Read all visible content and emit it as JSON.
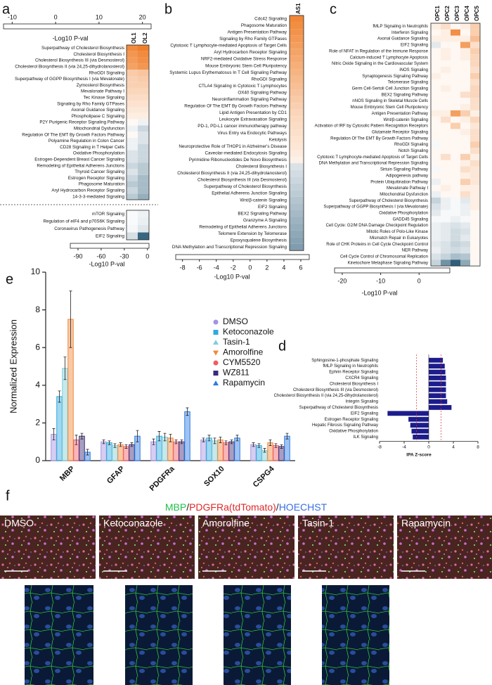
{
  "chart_data": [
    {
      "type": "heatmap",
      "panel": "a",
      "columns": [
        "OL1",
        "OL2"
      ],
      "blocks": [
        {
          "rows": [
            "Superpathway of Cholesterol Biosynthesis",
            "Cholesterol Biosynthesis I",
            "Cholesterol Biosynthesis III (via Desmosterol)",
            "Cholesterol Biosynthesis II (via 24,25-dihydrolanosterol)",
            "RhoGDI Signaling",
            "Superpathway of GGPP Biosynthesis I (via Mevalonate)",
            "Zymosterol Biosynthesis",
            "Mevalonate Pathway I",
            "Tec Kinase Signaling",
            "Signaling by Rho Family GTPases",
            "Axonal Guidance Signaling",
            "Phospholipase C Signaling",
            "P2Y Purigenic Receptor Signaling Pathway",
            "Mitochondrial Dysfunction",
            "Regulation Of The EMT By Growth Factors Pathway",
            "Polyamine Regulation in Colon Cancer",
            "CD28 Signaling in T Helper Cells",
            "Oxidative Phosphorylation",
            "Estrogen-Dependent Breast Cancer Signaling",
            "Remodeling of Epithelial Adherens Junctions",
            "Thyroid Cancer Signaling",
            "Estrogen Receptor Signaling",
            "Phagosome Maturation",
            "Aryl Hydrocarbon Receptor Signaling",
            "14-3-3-mediated Signaling"
          ],
          "values": [
            [
              20,
              22
            ],
            [
              18,
              20
            ],
            [
              17,
              19
            ],
            [
              16,
              18
            ],
            [
              9,
              10
            ],
            [
              8,
              9
            ],
            [
              8,
              8
            ],
            [
              7,
              7
            ],
            [
              6,
              6
            ],
            [
              5,
              5
            ],
            [
              4,
              4
            ],
            [
              3,
              3
            ],
            [
              1,
              -1
            ],
            [
              -1,
              -3
            ],
            [
              1,
              -2
            ],
            [
              -1,
              -2
            ],
            [
              -1,
              -3
            ],
            [
              -2,
              -3
            ],
            [
              -2,
              -3
            ],
            [
              -3,
              -4
            ],
            [
              -2,
              -4
            ],
            [
              -3,
              -5
            ],
            [
              -4,
              -5
            ],
            [
              -3,
              -5
            ],
            [
              -4,
              -6
            ]
          ],
          "colorbar_lim": [
            -12,
            22
          ],
          "colorbar_ticks": [
            -10,
            0,
            10,
            20
          ],
          "colorbar_label": "-Log10  P-val"
        },
        {
          "rows": [
            "mTOR Signaling",
            "Regulation of eIF4 and p70S6K Signaling",
            "Coronavirus Pathogenesis Pathway",
            "EIF2 Signaling"
          ],
          "values": [
            [
              -3,
              -8
            ],
            [
              -3,
              -10
            ],
            [
              -5,
              -15
            ],
            [
              -20,
              -95
            ]
          ],
          "colorbar_lim": [
            -100,
            2
          ],
          "colorbar_ticks": [
            -90,
            -60,
            -30,
            0
          ],
          "colorbar_label": "-Log10  P-val"
        }
      ],
      "positive_color": "#f07f2a",
      "negative_color": "#2f5f7a"
    },
    {
      "type": "heatmap",
      "panel": "b",
      "columns": [
        "AS1"
      ],
      "blocks": [
        {
          "rows": [
            "Cdc42 Signaling",
            "Phagosome Maturation",
            "Antigen Presentation Pathway",
            "Signaling by Rho Family GTPases",
            "Cytotoxic T Lymphocyte-mediated Apoptosis of Target Cells",
            "Aryl Hydrocarbon Receptor Signaling",
            "NRF2-mediated Oxidative Stress Response",
            "Mouse Embryonic Stem Cell Pluripotency",
            "Systemic Lupus Erythematosus In T Cell Signaling Pathway",
            "RhoGDI Signaling",
            "CTLA4 Signaling in Cytotoxic T Lymphocytes",
            "OX40 Signaling Pathway",
            "Neuroinflammation Signaling Pathway",
            "Regulation Of The EMT By Growth Factors Pathway",
            "Lipid Antigen Presentation by CD1",
            "Leukocyte Extravasation Signaling",
            "PD-1, PD-L1 cancer immunotherapy pathway",
            "Virus Entry via Endocytic Pathways",
            "Ketolysis",
            "Neuroprotective Role of THOP1 in Alzheimer's Disease",
            "Caveolar-mediated Endocytosis Signaling",
            "Pyrimidine Ribonucleotides De Novo Biosynthesis",
            "Cholesterol Biosynthesis I",
            "Cholesterol Biosynthesis II (via 24,25-dihydrolanosterol)",
            "Cholesterol Biosynthesis III (via Desmosterol)",
            "Superpathway of Cholesterol Biosynthesis",
            "Epithelial Adherens Junction Signaling",
            "Wnt/β-catenin Signaling",
            "EIF2 Signaling",
            "BEX2 Signaling Pathway",
            "Granzyme A Signaling",
            "Remodeling of Epithelial Adherens Junctions",
            "Telomere Extension by Telomerase",
            "Epoxysqualene Biosynthesis",
            "DNA Methylation and Transcriptional Repression Signaling"
          ],
          "values": [
            [
              6.5
            ],
            [
              6.2
            ],
            [
              5.9
            ],
            [
              5.6
            ],
            [
              5.3
            ],
            [
              5
            ],
            [
              4.7
            ],
            [
              4.4
            ],
            [
              4.1
            ],
            [
              3.8
            ],
            [
              3.5
            ],
            [
              3.2
            ],
            [
              2.9
            ],
            [
              2.6
            ],
            [
              2.3
            ],
            [
              2.1
            ],
            [
              1.9
            ],
            [
              1.7
            ],
            [
              1.5
            ],
            [
              1.3
            ],
            [
              1.1
            ],
            [
              0.8
            ],
            [
              -2
            ],
            [
              -2.4
            ],
            [
              -2.8
            ],
            [
              -3.2
            ],
            [
              -3.6
            ],
            [
              -4
            ],
            [
              -4.4
            ],
            [
              -4.8
            ],
            [
              -5.2
            ],
            [
              -5.6
            ],
            [
              -6
            ],
            [
              -6.4
            ],
            [
              -6.8
            ]
          ],
          "colorbar_lim": [
            -8.8,
            7
          ],
          "colorbar_ticks": [
            -8,
            -6,
            -4,
            -2,
            0,
            2,
            4,
            6
          ],
          "colorbar_label": "-Log10  P-val"
        }
      ],
      "positive_color": "#f07f2a",
      "negative_color": "#5a7f96"
    },
    {
      "type": "heatmap",
      "panel": "c",
      "columns": [
        "OPC1",
        "OPC2",
        "OPC3",
        "OPC4",
        "OPC5"
      ],
      "blocks": [
        {
          "rows": [
            "fMLP Signaling in Neutrophils",
            "Interferon Signaling",
            "Axonal Guidance Signaling",
            "EIF2 Signaling",
            "Role of NFAT in Regulation of the Immune Response",
            "Calcium-induced T Lymphocyte Apoptosis",
            "Nitric Oxide Signaling in the Cardiovascular System",
            "iNOS Signaling",
            "Synaptogenesis Signaling Pathway",
            "Telomerase Signaling",
            "Germ Cell-Sertoli Cell Junction Signaling",
            "BEX2 Signaling Pathway",
            "nNOS Signaling in Skeletal Muscle Cells",
            "Mouse Embryonic Stem Cell Pluripotency",
            "Antigen Presentation Pathway",
            "Wnt/β-catenin Signaling",
            "Activation of IRF by Cytosolic Pattern Recognition Receptors",
            "Glutamate Receptor Signaling",
            "Regulation Of The EMT By Growth Factors Pathway",
            "RhoGDI Signaling",
            "Notch Signaling",
            "Cytotoxic T Lymphocyte-mediated Apoptosis of Target Cells",
            "DNA Methylation and Transcriptional Repression Signaling",
            "Sirtuin Signaling Pathway",
            "Adipogenesis pathway",
            "Protein Ubiquitination Pathway",
            "Mevalonate Pathway I",
            "Mitochondrial Dysfunction",
            "Superpathway of Cholesterol Biosynthesis",
            "Superpathway of GGPP Biosynthesis I (via Mevalonate)",
            "Oxidative Phosphorylation",
            "GADD45 Signaling",
            "Cell Cycle: G2/M DNA Damage Checkpoint Regulation",
            "Mitotic Roles of Polo-Like Kinase",
            "Mismatch Repair in Eukaryotes",
            "Role of CHK Proteins in Cell Cycle Checkpoint Control",
            "NER Pathway",
            "Cell Cycle Control of Chromosomal Replication",
            "Kinetochore Metaphase Signaling Pathway"
          ],
          "values": [
            [
              1,
              2,
              0.5,
              1,
              3
            ],
            [
              0.5,
              1,
              7,
              0.5,
              3
            ],
            [
              1,
              1,
              1,
              1,
              4
            ],
            [
              -3,
              0.5,
              0.5,
              6,
              2
            ],
            [
              0.5,
              1,
              0.5,
              1,
              3
            ],
            [
              0.5,
              1,
              0.5,
              1,
              2.5
            ],
            [
              0.5,
              0.5,
              0.5,
              0.5,
              2.5
            ],
            [
              0.5,
              1,
              0.5,
              0.5,
              2
            ],
            [
              1,
              0.5,
              0.5,
              0.5,
              3
            ],
            [
              0.5,
              0.5,
              0.5,
              0.5,
              2
            ],
            [
              0.5,
              1,
              0.5,
              0.5,
              2.5
            ],
            [
              0.5,
              0.5,
              0.5,
              2,
              2.5
            ],
            [
              0.5,
              0.5,
              0.5,
              0.5,
              2
            ],
            [
              0.5,
              0.5,
              0.5,
              1,
              2
            ],
            [
              1,
              1,
              6,
              3,
              1
            ],
            [
              0.5,
              2,
              0.5,
              1,
              2.5
            ],
            [
              0.5,
              0.5,
              3,
              0.5,
              1.5
            ],
            [
              0.5,
              0.5,
              0.5,
              1,
              2
            ],
            [
              0.5,
              0.5,
              0.5,
              0.5,
              2
            ],
            [
              -1,
              0.5,
              0.5,
              0.5,
              3
            ],
            [
              0.5,
              0.5,
              0.5,
              0.5,
              2
            ],
            [
              0.5,
              2,
              0.5,
              3,
              1
            ],
            [
              0.5,
              0.5,
              0.5,
              1,
              2
            ],
            [
              -1,
              0.5,
              0.5,
              2,
              1.5
            ],
            [
              0.5,
              0.5,
              0.5,
              1,
              1.5
            ],
            [
              -2,
              0.5,
              0.5,
              3,
              1.5
            ],
            [
              0.5,
              1,
              0.5,
              1,
              1
            ],
            [
              -2,
              0.5,
              0.5,
              2,
              1
            ],
            [
              -6,
              -2,
              -1,
              -3,
              1
            ],
            [
              -4,
              -2,
              -1,
              -2,
              1
            ],
            [
              -3,
              -1,
              -1,
              -2,
              0.5
            ],
            [
              -1,
              -1,
              -2,
              -1,
              0.5
            ],
            [
              -2,
              -3,
              -4,
              -3,
              0.5
            ],
            [
              -2,
              -3,
              -5,
              -4,
              0.5
            ],
            [
              -2,
              -3,
              -5,
              -3,
              0.5
            ],
            [
              -3,
              -4,
              -6,
              -5,
              0.5
            ],
            [
              -2,
              -4,
              -5,
              -4,
              0.5
            ],
            [
              -4,
              -6,
              -9,
              -8,
              0.5
            ],
            [
              -6,
              -15,
              -22,
              -12,
              0.5
            ]
          ],
          "colorbar_lim": [
            -22,
            8
          ],
          "colorbar_ticks": [
            -20,
            -10,
            0
          ],
          "colorbar_label": "-Log10  P-val"
        }
      ],
      "positive_color": "#f07f2a",
      "negative_color": "#2f5f7a"
    },
    {
      "type": "bar",
      "panel": "e",
      "orientation": "vertical",
      "y_label": "Normalized Expression",
      "categories": [
        "MBP",
        "GFAP",
        "PDGFRa",
        "SOX10",
        "CSPG4"
      ],
      "ylim": [
        0,
        10
      ],
      "yticks": [
        0,
        2,
        4,
        6,
        8,
        10
      ],
      "series": [
        {
          "name": "DMSO",
          "color": "#a393e0",
          "marker": "circle",
          "values": [
            1.4,
            1.0,
            1.0,
            1.1,
            0.85
          ],
          "errors": [
            0.3,
            0.1,
            0.15,
            0.1,
            0.1
          ]
        },
        {
          "name": "Ketoconazole",
          "color": "#2fa9df",
          "marker": "square",
          "values": [
            3.4,
            0.95,
            1.3,
            1.2,
            0.8
          ],
          "errors": [
            0.3,
            0.1,
            0.25,
            0.15,
            0.1
          ]
        },
        {
          "name": "Tasin-1",
          "color": "#7fcfd8",
          "marker": "triangle",
          "values": [
            4.9,
            0.8,
            1.25,
            1.05,
            0.55
          ],
          "errors": [
            0.6,
            0.1,
            0.2,
            0.15,
            0.1
          ]
        },
        {
          "name": "Amorolfine",
          "color": "#f2873a",
          "marker": "triangle-down",
          "values": [
            7.5,
            0.85,
            1.2,
            1.1,
            0.95
          ],
          "errors": [
            1.5,
            0.1,
            0.2,
            0.15,
            0.15
          ]
        },
        {
          "name": "CYM5520",
          "color": "#ef5b67",
          "marker": "circle",
          "values": [
            1.1,
            0.75,
            1.0,
            0.95,
            0.8
          ],
          "errors": [
            0.25,
            0.1,
            0.1,
            0.1,
            0.1
          ]
        },
        {
          "name": "WZ811",
          "color": "#3b2a78",
          "marker": "square",
          "values": [
            1.3,
            0.85,
            1.0,
            1.0,
            0.75
          ],
          "errors": [
            0.15,
            0.1,
            0.1,
            0.1,
            0.1
          ]
        },
        {
          "name": "Rapamycin",
          "color": "#2d7be0",
          "marker": "triangle",
          "values": [
            0.45,
            1.3,
            2.6,
            1.2,
            1.3
          ],
          "errors": [
            0.15,
            0.3,
            0.2,
            0.15,
            0.15
          ]
        }
      ]
    },
    {
      "type": "bar",
      "panel": "d",
      "orientation": "horizontal",
      "x_label": "IPA Z-score",
      "color": "#1c1c8c",
      "categories": [
        "Sphingosine-1-phosphate Signaling",
        "fMLP Signaling in Neutrophils",
        "Ephrin Receptor Signaling",
        "CXCR4 Signaling",
        "Cholesterol Biosynthesis I",
        "Cholesterol Biosynthesis III (via Desmosterol)",
        "Cholesterol Biosynthesis II (via 24,25-dihydrolanosterol)",
        "Integrin Signaling",
        "Superpathway of Cholesterol Biosynthesis",
        "EIF2 Signaling",
        "Estrogen Receptor Signaling",
        "Hepatic Fibrosis Signaling Pathway",
        "Oxidative Phosphorylation",
        "ILK Signaling"
      ],
      "values": [
        2.3,
        2.6,
        2.7,
        2.8,
        2.8,
        2.8,
        2.8,
        3.0,
        3.7,
        -6.7,
        -3.3,
        -3.0,
        -2.8,
        -2.6
      ],
      "xlim": [
        -8,
        8
      ],
      "xticks": [
        -8,
        -4,
        0,
        4,
        8
      ],
      "reference_lines": [
        -2,
        2
      ],
      "reference_color": "#e03030"
    }
  ],
  "panel_f": {
    "panel": "f",
    "title_parts": [
      {
        "text": "MBP",
        "color": "#22c04a"
      },
      {
        "text": "/",
        "color": "#222222"
      },
      {
        "text": "PDGFRa(tdTomato)",
        "color": "#e02828"
      },
      {
        "text": "/",
        "color": "#222222"
      },
      {
        "text": "HOECHST",
        "color": "#3a6ee0"
      }
    ],
    "images": [
      "DMSO",
      "Ketoconazole",
      "Amorolfine",
      "Tasin-1",
      "Rapamycin"
    ]
  }
}
